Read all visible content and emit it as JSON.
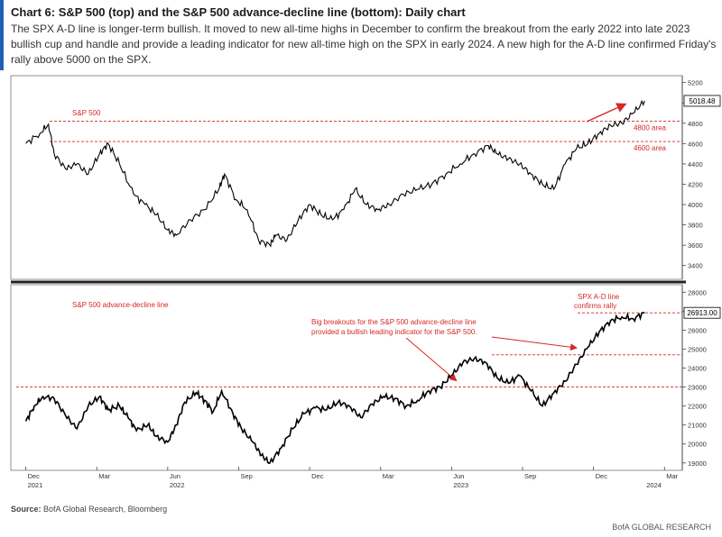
{
  "header": {
    "title": "Chart 6: S&P 500 (top) and the S&P 500 advance-decline line (bottom): Daily chart",
    "subtitle": "The SPX A-D line is longer-term bullish. It moved to new all-time highs in December to confirm the breakout from the early 2022 into late 2023 bullish cup and handle and provide a leading indicator for new all-time high on the SPX in early 2024. A new high for the A-D line confirmed Friday's rally above 5000 on the SPX."
  },
  "footer": {
    "source_label": "Source:",
    "source_text": "BofA Global Research, Bloomberg",
    "brand": "BofA GLOBAL RESEARCH"
  },
  "colors": {
    "accent": "#1f5fb4",
    "annotation": "#d62828",
    "series": "#000000"
  },
  "chart_data": [
    {
      "type": "line",
      "name": "top",
      "label": "S&P 500",
      "ylim": [
        3300,
        5250
      ],
      "yticks": [
        3400,
        3600,
        3800,
        4000,
        4200,
        4400,
        4600,
        4800,
        5000,
        5200
      ],
      "last_value_label": "5018.48",
      "levels": [
        {
          "value": 4820,
          "label": "4800 area"
        },
        {
          "value": 4620,
          "label": "4600 area"
        }
      ],
      "x": [
        2021.92,
        2021.97,
        2022.0,
        2022.02,
        2022.06,
        2022.1,
        2022.14,
        2022.18,
        2022.21,
        2022.25,
        2022.3,
        2022.34,
        2022.38,
        2022.42,
        2022.45,
        2022.5,
        2022.55,
        2022.6,
        2022.62,
        2022.66,
        2022.7,
        2022.74,
        2022.78,
        2022.8,
        2022.84,
        2022.88,
        2022.92,
        2022.96,
        2023.0,
        2023.04,
        2023.08,
        2023.12,
        2023.16,
        2023.2,
        2023.25,
        2023.3,
        2023.35,
        2023.4,
        2023.45,
        2023.5,
        2023.55,
        2023.58,
        2023.62,
        2023.66,
        2023.7,
        2023.74,
        2023.78,
        2023.82,
        2023.86,
        2023.9,
        2023.94,
        2023.98,
        2024.02,
        2024.06,
        2024.1
      ],
      "values": [
        4600,
        4700,
        4790,
        4500,
        4350,
        4400,
        4300,
        4500,
        4600,
        4400,
        4100,
        4000,
        3900,
        3750,
        3700,
        3850,
        3950,
        4150,
        4300,
        4050,
        3950,
        3650,
        3600,
        3700,
        3650,
        3850,
        4000,
        3900,
        3850,
        3950,
        4150,
        4000,
        3950,
        4000,
        4100,
        4150,
        4200,
        4300,
        4400,
        4500,
        4580,
        4500,
        4450,
        4400,
        4300,
        4200,
        4150,
        4400,
        4550,
        4600,
        4700,
        4780,
        4800,
        4900,
        5020
      ]
    },
    {
      "type": "line",
      "name": "bottom",
      "label": "S&P 500 advance-decline line",
      "ylim": [
        18800,
        28300
      ],
      "yticks": [
        19000,
        20000,
        21000,
        22000,
        23000,
        24000,
        25000,
        26000,
        27000,
        28000
      ],
      "last_value_label": "26913.00",
      "levels": [
        {
          "value": 26913,
          "label": ""
        },
        {
          "value": 24700,
          "label": ""
        },
        {
          "value": 23000,
          "label": ""
        }
      ],
      "x": [
        2021.92,
        2021.95,
        2021.98,
        2022.02,
        2022.06,
        2022.1,
        2022.14,
        2022.18,
        2022.21,
        2022.25,
        2022.28,
        2022.31,
        2022.35,
        2022.38,
        2022.42,
        2022.45,
        2022.48,
        2022.52,
        2022.55,
        2022.58,
        2022.61,
        2022.65,
        2022.68,
        2022.72,
        2022.75,
        2022.78,
        2022.82,
        2022.86,
        2022.9,
        2022.94,
        2022.98,
        2023.02,
        2023.06,
        2023.1,
        2023.14,
        2023.18,
        2023.22,
        2023.26,
        2023.3,
        2023.34,
        2023.38,
        2023.42,
        2023.46,
        2023.5,
        2023.54,
        2023.58,
        2023.62,
        2023.66,
        2023.7,
        2023.74,
        2023.78,
        2023.82,
        2023.86,
        2023.9,
        2023.94,
        2023.98,
        2024.02,
        2024.06,
        2024.1
      ],
      "values": [
        21200,
        22000,
        22500,
        22400,
        21500,
        20800,
        22000,
        22500,
        21800,
        22000,
        21400,
        20700,
        21000,
        20400,
        20100,
        21000,
        22200,
        22700,
        22300,
        21700,
        22800,
        21600,
        20800,
        20100,
        19400,
        19000,
        19800,
        20800,
        21600,
        21900,
        21800,
        22200,
        22000,
        21400,
        22100,
        22500,
        22400,
        22000,
        22300,
        22800,
        23000,
        23600,
        24300,
        24500,
        24300,
        23500,
        23200,
        23600,
        22800,
        22000,
        22700,
        23300,
        24200,
        25100,
        25900,
        26500,
        26700,
        26600,
        26913
      ]
    }
  ],
  "x_axis": {
    "ticks": [
      {
        "x": 2021.92,
        "label": "Dec"
      },
      {
        "x": 2022.17,
        "label": "Mar"
      },
      {
        "x": 2022.42,
        "label": "Jun"
      },
      {
        "x": 2022.67,
        "label": "Sep"
      },
      {
        "x": 2022.92,
        "label": "Dec"
      },
      {
        "x": 2023.17,
        "label": "Mar"
      },
      {
        "x": 2023.42,
        "label": "Jun"
      },
      {
        "x": 2023.67,
        "label": "Sep"
      },
      {
        "x": 2023.92,
        "label": "Dec"
      },
      {
        "x": 2024.17,
        "label": "Mar"
      }
    ],
    "years": [
      {
        "x": 2021.92,
        "label": "2021"
      },
      {
        "x": 2022.42,
        "label": "2022"
      },
      {
        "x": 2023.42,
        "label": "2023"
      },
      {
        "x": 2024.1,
        "label": "2024"
      }
    ],
    "range": [
      2021.88,
      2024.22
    ]
  },
  "annotations": {
    "breakout_text_1": "Big breakouts for the S&P 500 advance-decline line",
    "breakout_text_2": "provided a bullish leading indicator for the S&P 500.",
    "confirm_text_1": "SPX A-D line",
    "confirm_text_2": "confirms rally"
  }
}
